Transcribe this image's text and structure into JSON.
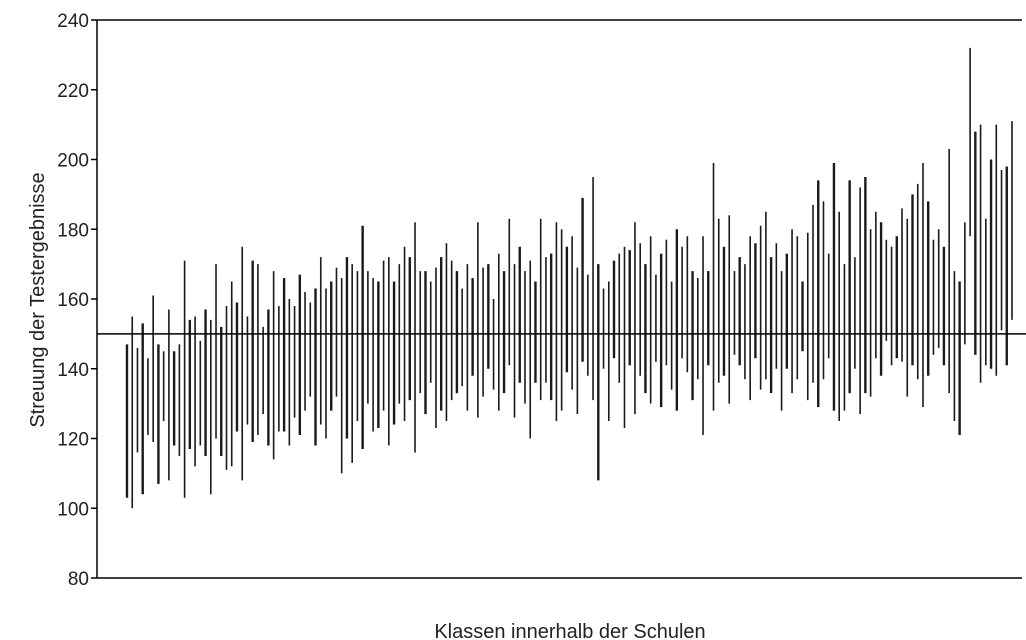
{
  "chart_data": {
    "type": "range-bar",
    "title": "",
    "xlabel": "Klassen innerhalb der Schulen",
    "ylabel": "Streuung der Testergebnisse",
    "ylim": [
      80,
      240
    ],
    "yticks": [
      80,
      100,
      120,
      140,
      160,
      180,
      200,
      220,
      240
    ],
    "reference_line": 150,
    "grid": false,
    "legend": "none",
    "colors": {
      "bar": "#1a1a1a",
      "axis": "#000000",
      "reference": "#000000"
    },
    "ranges": [
      [
        103,
        147
      ],
      [
        100,
        155
      ],
      [
        116,
        146
      ],
      [
        104,
        153
      ],
      [
        121,
        143
      ],
      [
        119,
        161
      ],
      [
        107,
        147
      ],
      [
        125,
        145
      ],
      [
        108,
        157
      ],
      [
        118,
        145
      ],
      [
        115,
        147
      ],
      [
        103,
        171
      ],
      [
        117,
        154
      ],
      [
        112,
        155
      ],
      [
        118,
        148
      ],
      [
        115,
        157
      ],
      [
        104,
        154
      ],
      [
        120,
        170
      ],
      [
        115,
        152
      ],
      [
        111,
        158
      ],
      [
        112,
        165
      ],
      [
        122,
        159
      ],
      [
        108,
        175
      ],
      [
        124,
        155
      ],
      [
        119,
        171
      ],
      [
        121,
        170
      ],
      [
        127,
        152
      ],
      [
        118,
        157
      ],
      [
        114,
        168
      ],
      [
        122,
        158
      ],
      [
        122,
        166
      ],
      [
        118,
        160
      ],
      [
        126,
        158
      ],
      [
        121,
        167
      ],
      [
        128,
        162
      ],
      [
        132,
        159
      ],
      [
        118,
        163
      ],
      [
        124,
        172
      ],
      [
        120,
        163
      ],
      [
        128,
        165
      ],
      [
        132,
        169
      ],
      [
        110,
        166
      ],
      [
        120,
        172
      ],
      [
        113,
        170
      ],
      [
        125,
        168
      ],
      [
        117,
        181
      ],
      [
        130,
        168
      ],
      [
        122,
        166
      ],
      [
        123,
        165
      ],
      [
        128,
        171
      ],
      [
        118,
        172
      ],
      [
        124,
        165
      ],
      [
        130,
        170
      ],
      [
        125,
        175
      ],
      [
        131,
        172
      ],
      [
        116,
        182
      ],
      [
        133,
        168
      ],
      [
        127,
        168
      ],
      [
        136,
        165
      ],
      [
        123,
        169
      ],
      [
        128,
        172
      ],
      [
        125,
        176
      ],
      [
        131,
        171
      ],
      [
        133,
        168
      ],
      [
        135,
        163
      ],
      [
        128,
        170
      ],
      [
        138,
        166
      ],
      [
        126,
        182
      ],
      [
        132,
        169
      ],
      [
        140,
        170
      ],
      [
        134,
        160
      ],
      [
        128,
        173
      ],
      [
        133,
        168
      ],
      [
        141,
        183
      ],
      [
        126,
        170
      ],
      [
        136,
        175
      ],
      [
        130,
        168
      ],
      [
        120,
        171
      ],
      [
        136,
        165
      ],
      [
        131,
        183
      ],
      [
        136,
        172
      ],
      [
        131,
        173
      ],
      [
        125,
        182
      ],
      [
        128,
        180
      ],
      [
        139,
        175
      ],
      [
        134,
        178
      ],
      [
        127,
        169
      ],
      [
        142,
        189
      ],
      [
        138,
        167
      ],
      [
        131,
        195
      ],
      [
        108,
        170
      ],
      [
        140,
        163
      ],
      [
        125,
        165
      ],
      [
        143,
        171
      ],
      [
        136,
        173
      ],
      [
        123,
        175
      ],
      [
        141,
        174
      ],
      [
        127,
        182
      ],
      [
        138,
        176
      ],
      [
        133,
        170
      ],
      [
        130,
        178
      ],
      [
        142,
        167
      ],
      [
        129,
        173
      ],
      [
        141,
        177
      ],
      [
        134,
        165
      ],
      [
        128,
        180
      ],
      [
        143,
        175
      ],
      [
        139,
        178
      ],
      [
        131,
        168
      ],
      [
        137,
        166
      ],
      [
        121,
        178
      ],
      [
        141,
        168
      ],
      [
        128,
        199
      ],
      [
        136,
        183
      ],
      [
        138,
        175
      ],
      [
        130,
        184
      ],
      [
        144,
        168
      ],
      [
        141,
        172
      ],
      [
        137,
        170
      ],
      [
        131,
        178
      ],
      [
        143,
        176
      ],
      [
        134,
        181
      ],
      [
        137,
        185
      ],
      [
        133,
        172
      ],
      [
        140,
        176
      ],
      [
        128,
        168
      ],
      [
        140,
        173
      ],
      [
        133,
        180
      ],
      [
        137,
        178
      ],
      [
        145,
        165
      ],
      [
        131,
        179
      ],
      [
        136,
        187
      ],
      [
        129,
        194
      ],
      [
        137,
        188
      ],
      [
        143,
        173
      ],
      [
        128,
        199
      ],
      [
        125,
        185
      ],
      [
        128,
        170
      ],
      [
        133,
        194
      ],
      [
        140,
        172
      ],
      [
        127,
        192
      ],
      [
        133,
        195
      ],
      [
        132,
        180
      ],
      [
        143,
        185
      ],
      [
        138,
        182
      ],
      [
        148,
        177
      ],
      [
        141,
        175
      ],
      [
        143,
        178
      ],
      [
        142,
        186
      ],
      [
        132,
        183
      ],
      [
        141,
        190
      ],
      [
        137,
        193
      ],
      [
        129,
        199
      ],
      [
        138,
        188
      ],
      [
        144,
        177
      ],
      [
        146,
        180
      ],
      [
        141,
        175
      ],
      [
        133,
        203
      ],
      [
        125,
        168
      ],
      [
        121,
        165
      ],
      [
        147,
        182
      ],
      [
        178,
        232
      ],
      [
        144,
        208
      ],
      [
        136,
        210
      ],
      [
        141,
        183
      ],
      [
        140,
        200
      ],
      [
        138,
        210
      ],
      [
        151,
        197
      ],
      [
        141,
        198
      ],
      [
        154,
        211
      ]
    ]
  }
}
